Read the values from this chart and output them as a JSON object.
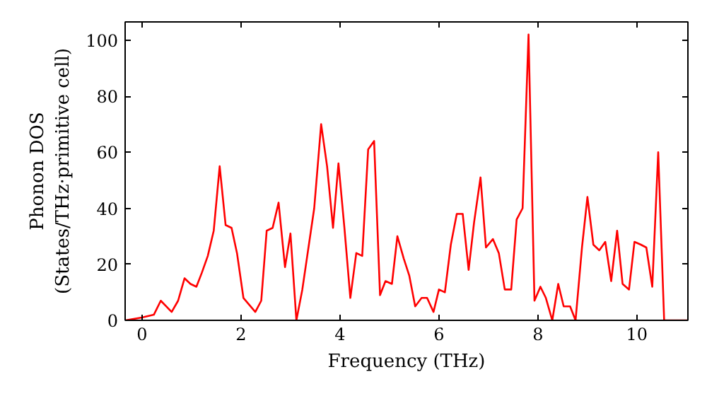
{
  "chart_data": {
    "type": "line",
    "xlabel": "Frequency (THz)",
    "ylabel": "Phonon DOS\n(States/THz·primitive cell)",
    "series": [
      {
        "color": "#ff0000",
        "x": [
          -0.34,
          0.0,
          0.24,
          0.38,
          0.6,
          0.73,
          0.86,
          0.98,
          1.1,
          1.21,
          1.33,
          1.45,
          1.57,
          1.69,
          1.81,
          1.92,
          2.05,
          2.29,
          2.41,
          2.52,
          2.64,
          2.76,
          2.89,
          3.0,
          3.12,
          3.24,
          3.48,
          3.62,
          3.74,
          3.86,
          3.97,
          4.09,
          4.21,
          4.33,
          4.45,
          4.57,
          4.69,
          4.81,
          4.92,
          5.05,
          5.16,
          5.29,
          5.4,
          5.52,
          5.65,
          5.76,
          5.89,
          6.0,
          6.12,
          6.24,
          6.36,
          6.48,
          6.6,
          6.71,
          6.84,
          6.95,
          7.09,
          7.21,
          7.33,
          7.46,
          7.57,
          7.69,
          7.81,
          7.93,
          8.05,
          8.16,
          8.29,
          8.41,
          8.52,
          8.65,
          8.76,
          8.89,
          9.0,
          9.12,
          9.24,
          9.36,
          9.48,
          9.6,
          9.71,
          9.84,
          9.95,
          10.08,
          10.19,
          10.31,
          10.43,
          10.55,
          11.03
        ],
        "values": [
          0,
          1,
          2,
          7,
          3,
          7,
          15,
          13,
          12,
          17,
          23,
          32,
          55,
          34,
          33,
          24,
          8,
          3,
          7,
          32,
          33,
          42,
          19,
          31,
          0,
          11,
          40,
          70,
          55,
          33,
          56,
          33,
          8,
          24,
          23,
          61,
          64,
          9,
          14,
          13,
          30,
          22,
          16,
          5,
          8,
          8,
          3,
          11,
          10,
          27,
          38,
          38,
          18,
          35,
          51,
          26,
          29,
          24,
          11,
          11,
          36,
          40,
          102,
          7,
          12,
          8,
          0,
          13,
          5,
          5,
          0,
          26,
          44,
          27,
          25,
          28,
          14,
          32,
          13,
          11,
          28,
          27,
          26,
          12,
          60,
          0,
          0
        ]
      }
    ],
    "xlim": [
      -0.34,
      11.03
    ],
    "ylim": [
      0,
      106.5
    ],
    "xticks": [
      0,
      2,
      4,
      6,
      8,
      10
    ],
    "yticks": [
      0,
      20,
      40,
      60,
      80,
      100
    ],
    "grid": false,
    "marker": "none",
    "line_style": "solid"
  }
}
